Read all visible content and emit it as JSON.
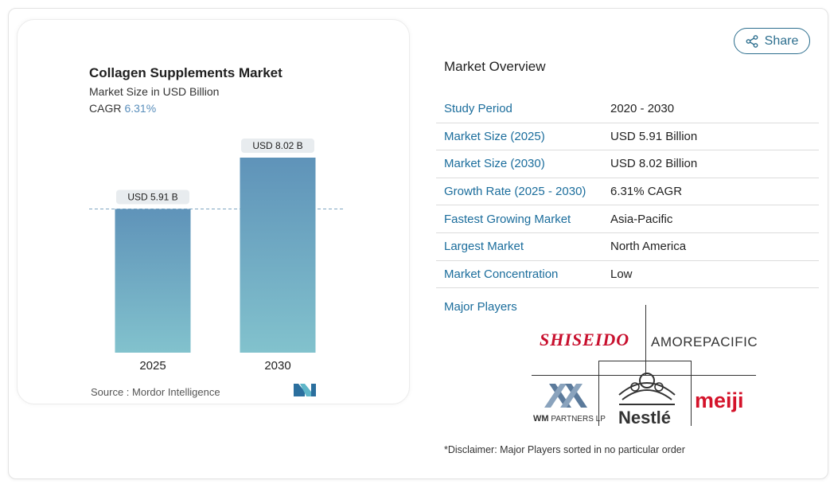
{
  "chart": {
    "title": "Collagen Supplements Market",
    "subtitle": "Market Size in USD Billion",
    "cagr_label": "CAGR",
    "cagr_value": "6.31%",
    "source": "Source : Mordor Intelligence",
    "bar_labels": [
      "USD 5.91 B",
      "USD 8.02 B"
    ]
  },
  "chart_data": {
    "type": "bar",
    "categories": [
      "2025",
      "2030"
    ],
    "values": [
      5.91,
      8.02
    ],
    "title": "Collagen Supplements Market",
    "xlabel": "",
    "ylabel": "Market Size in USD Billion",
    "ylim": [
      0,
      8.02
    ],
    "reference_line": 5.91,
    "grid": false,
    "colors": {
      "bar_top": "#5f93b9",
      "bar_bottom": "#82c2cd",
      "dashed_line": "#7fa6c2"
    }
  },
  "share": {
    "label": "Share",
    "icon": "share-icon"
  },
  "overview": {
    "title": "Market Overview",
    "rows": [
      {
        "label": "Study Period",
        "value": "2020 - 2030"
      },
      {
        "label": "Market Size (2025)",
        "value": "USD 5.91 Billion"
      },
      {
        "label": "Market Size (2030)",
        "value": "USD 8.02 Billion"
      },
      {
        "label": "Growth Rate (2025 - 2030)",
        "value": "6.31% CAGR"
      },
      {
        "label": "Fastest Growing Market",
        "value": "Asia-Pacific"
      },
      {
        "label": "Largest Market",
        "value": "North America"
      },
      {
        "label": "Market Concentration",
        "value": "Low"
      }
    ]
  },
  "players": {
    "title": "Major Players",
    "logos": [
      "SHISEIDO",
      "AMOREPACIFIC",
      "WM PARTNERS LP",
      "Nestlé",
      "meiji"
    ],
    "wm_main": "WM",
    "wm_sub": "PARTNERS LP"
  },
  "disclaimer": "*Disclaimer: Major Players sorted in no particular order",
  "colors": {
    "accent": "#1b6d9c",
    "share_border": "#2c6e8e",
    "shiseido": "#c8102e",
    "meiji": "#d4132a"
  }
}
